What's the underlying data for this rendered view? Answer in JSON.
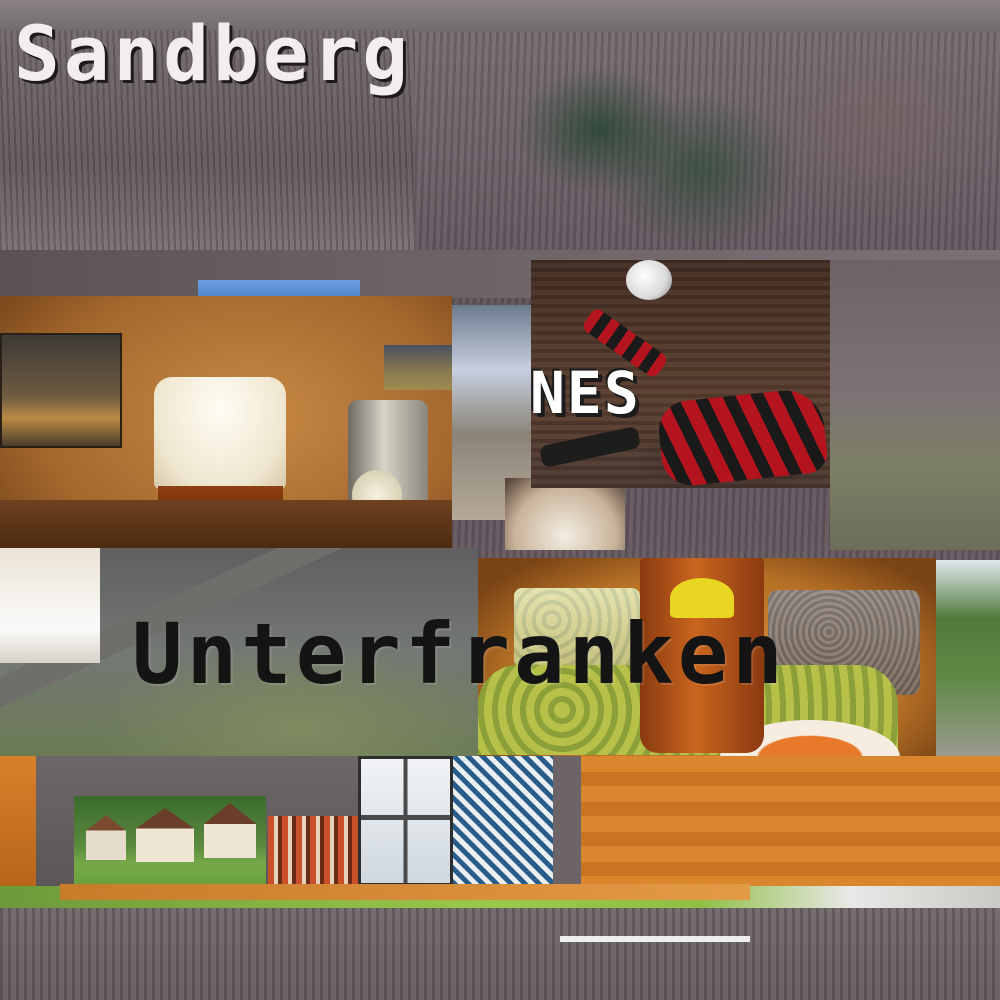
{
  "collage": {
    "title_top": "Sandberg",
    "title_mid": "Unterfranken",
    "title_overlay": "NES"
  },
  "palette": {
    "forest": "#5d5058",
    "wood": "#d9862e",
    "beer": "#8e3e12",
    "hops": "#b7c14a",
    "jersey_red": "#b3141e",
    "text_light": "#f2eef0",
    "text_dark": "#141414"
  },
  "photos": [
    {
      "name": "forest-hillside"
    },
    {
      "name": "pub-beer-glass"
    },
    {
      "name": "bicycle-kick-soccer"
    },
    {
      "name": "aerial-road-field"
    },
    {
      "name": "beer-with-hops"
    },
    {
      "name": "holiday-houses"
    },
    {
      "name": "folk-group"
    },
    {
      "name": "glass-window"
    },
    {
      "name": "blue-tile-wall"
    },
    {
      "name": "wooden-table"
    }
  ]
}
